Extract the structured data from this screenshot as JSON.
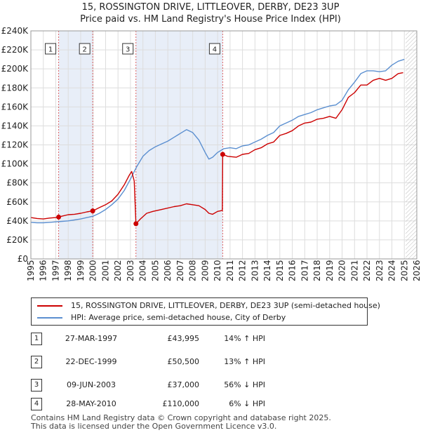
{
  "title_line1": "15, ROSSINGTON DRIVE, LITTLEOVER, DERBY, DE23 3UP",
  "title_line2": "Price paid vs. HM Land Registry's House Price Index (HPI)",
  "legend": {
    "red_label": "15, ROSSINGTON DRIVE, LITTLEOVER, DERBY, DE23 3UP (semi-detached house)",
    "blue_label": "HPI: Average price, semi-detached house, City of Derby"
  },
  "colors": {
    "price_paid": "#cc0000",
    "hpi": "#5b8fd0",
    "shade": "#e8eef8",
    "grid": "#dddddd"
  },
  "sales": [
    {
      "num": "1",
      "date": "27-MAR-1997",
      "price": "£43,995",
      "hpi": "14% ↑ HPI"
    },
    {
      "num": "2",
      "date": "22-DEC-1999",
      "price": "£50,500",
      "hpi": "13% ↑ HPI"
    },
    {
      "num": "3",
      "date": "09-JUN-2003",
      "price": "£37,000",
      "hpi": "56% ↓ HPI"
    },
    {
      "num": "4",
      "date": "28-MAY-2010",
      "price": "£110,000",
      "hpi": "6% ↓ HPI"
    }
  ],
  "footer_line1": "Contains HM Land Registry data © Crown copyright and database right 2025.",
  "footer_line2": "This data is licensed under the Open Government Licence v3.0.",
  "chart_data": {
    "type": "line",
    "title": "15, ROSSINGTON DRIVE, LITTLEOVER, DERBY, DE23 3UP",
    "subtitle": "Price paid vs. HM Land Registry's House Price Index (HPI)",
    "xlim": [
      1995,
      2026
    ],
    "ylim": [
      0,
      240000
    ],
    "x_ticks": [
      "1995",
      "1996",
      "1997",
      "1998",
      "1999",
      "2000",
      "2001",
      "2002",
      "2003",
      "2004",
      "2005",
      "2006",
      "2007",
      "2008",
      "2009",
      "2010",
      "2011",
      "2012",
      "2013",
      "2014",
      "2015",
      "2016",
      "2017",
      "2018",
      "2019",
      "2020",
      "2021",
      "2022",
      "2023",
      "2024",
      "2025",
      "2026"
    ],
    "y_ticks": [
      {
        "value": 0,
        "label": "£0"
      },
      {
        "value": 20000,
        "label": "£20K"
      },
      {
        "value": 40000,
        "label": "£40K"
      },
      {
        "value": 60000,
        "label": "£60K"
      },
      {
        "value": 80000,
        "label": "£80K"
      },
      {
        "value": 100000,
        "label": "£100K"
      },
      {
        "value": 120000,
        "label": "£120K"
      },
      {
        "value": 140000,
        "label": "£140K"
      },
      {
        "value": 160000,
        "label": "£160K"
      },
      {
        "value": 180000,
        "label": "£180K"
      },
      {
        "value": 200000,
        "label": "£200K"
      },
      {
        "value": 220000,
        "label": "£220K"
      },
      {
        "value": 240000,
        "label": "£240K"
      }
    ],
    "grid": true,
    "hatched_from": 2025.1,
    "sale_periods": [
      {
        "label": "1",
        "x": 1997.23
      },
      {
        "label": "2",
        "x": 1999.97
      },
      {
        "label": "3",
        "x": 2003.44
      },
      {
        "label": "4",
        "x": 2010.41
      }
    ],
    "shaded_between": [
      [
        1997.23,
        1999.97
      ],
      [
        2003.44,
        2010.41
      ]
    ],
    "sale_points": [
      {
        "x": 1997.23,
        "y": 43995
      },
      {
        "x": 1999.97,
        "y": 50500
      },
      {
        "x": 2003.44,
        "y": 37000
      },
      {
        "x": 2010.41,
        "y": 110000
      }
    ],
    "series": [
      {
        "name": "15, ROSSINGTON DRIVE, LITTLEOVER, DERBY, DE23 3UP (semi-detached house)",
        "color": "#cc0000",
        "x": [
          1995.0,
          1995.5,
          1996.0,
          1996.5,
          1997.0,
          1997.23,
          1997.5,
          1998.0,
          1998.5,
          1999.0,
          1999.5,
          1999.97,
          2000.5,
          2001.0,
          2001.5,
          2002.0,
          2002.5,
          2002.9,
          2003.1,
          2003.3,
          2003.44,
          2003.8,
          2004.3,
          2004.8,
          2005.5,
          2006.5,
          2007.0,
          2007.5,
          2008.0,
          2008.5,
          2009.0,
          2009.3,
          2009.6,
          2010.0,
          2010.38,
          2010.41,
          2010.8,
          2011.5,
          2012.0,
          2012.5,
          2013.0,
          2013.5,
          2014.0,
          2014.5,
          2015.0,
          2015.5,
          2016.0,
          2016.5,
          2017.0,
          2017.5,
          2018.0,
          2018.5,
          2019.0,
          2019.5,
          2020.0,
          2020.5,
          2021.0,
          2021.5,
          2022.0,
          2022.5,
          2023.0,
          2023.5,
          2024.0,
          2024.5,
          2024.9
        ],
        "values": [
          43500,
          42500,
          42000,
          43000,
          43500,
          43995,
          45000,
          46500,
          47000,
          48000,
          49500,
          50500,
          54000,
          57000,
          61000,
          68000,
          78000,
          88000,
          92000,
          82000,
          37000,
          42000,
          48000,
          50000,
          52000,
          55000,
          56000,
          58000,
          57000,
          56000,
          52000,
          48000,
          47000,
          50000,
          51000,
          110000,
          108000,
          107000,
          110000,
          111000,
          115000,
          117000,
          121000,
          123000,
          130000,
          132000,
          135000,
          140000,
          143000,
          144000,
          147000,
          148000,
          150000,
          148000,
          157000,
          170000,
          175000,
          183000,
          183000,
          188000,
          190000,
          188000,
          190000,
          195000,
          196000
        ]
      },
      {
        "name": "HPI: Average price, semi-detached house, City of Derby",
        "color": "#5b8fd0",
        "x": [
          1995.0,
          1995.5,
          1996.0,
          1996.5,
          1997.0,
          1997.5,
          1998.0,
          1998.5,
          1999.0,
          1999.5,
          2000.0,
          2000.5,
          2001.0,
          2001.5,
          2002.0,
          2002.5,
          2003.0,
          2003.5,
          2004.0,
          2004.5,
          2005.0,
          2005.5,
          2006.0,
          2006.5,
          2007.0,
          2007.5,
          2008.0,
          2008.5,
          2009.0,
          2009.3,
          2009.6,
          2010.0,
          2010.5,
          2011.0,
          2011.5,
          2012.0,
          2012.5,
          2013.0,
          2013.5,
          2014.0,
          2014.5,
          2015.0,
          2015.5,
          2016.0,
          2016.5,
          2017.0,
          2017.5,
          2018.0,
          2018.5,
          2019.0,
          2019.5,
          2020.0,
          2020.5,
          2021.0,
          2021.5,
          2022.0,
          2022.5,
          2023.0,
          2023.5,
          2024.0,
          2024.5,
          2025.0
        ],
        "values": [
          38500,
          38000,
          38000,
          38500,
          39000,
          39500,
          40000,
          41000,
          42000,
          43500,
          45000,
          48000,
          52000,
          57000,
          63000,
          72000,
          84000,
          97000,
          108000,
          114000,
          118000,
          121000,
          124000,
          128000,
          132000,
          136000,
          133000,
          125000,
          112000,
          105000,
          107000,
          112000,
          116000,
          117000,
          116000,
          119000,
          120000,
          123000,
          126000,
          130000,
          133000,
          140000,
          143000,
          146000,
          150000,
          152000,
          154000,
          157000,
          159000,
          161000,
          162000,
          167000,
          178000,
          186000,
          195000,
          198000,
          198000,
          197000,
          198000,
          204000,
          208000,
          210000
        ]
      }
    ]
  }
}
